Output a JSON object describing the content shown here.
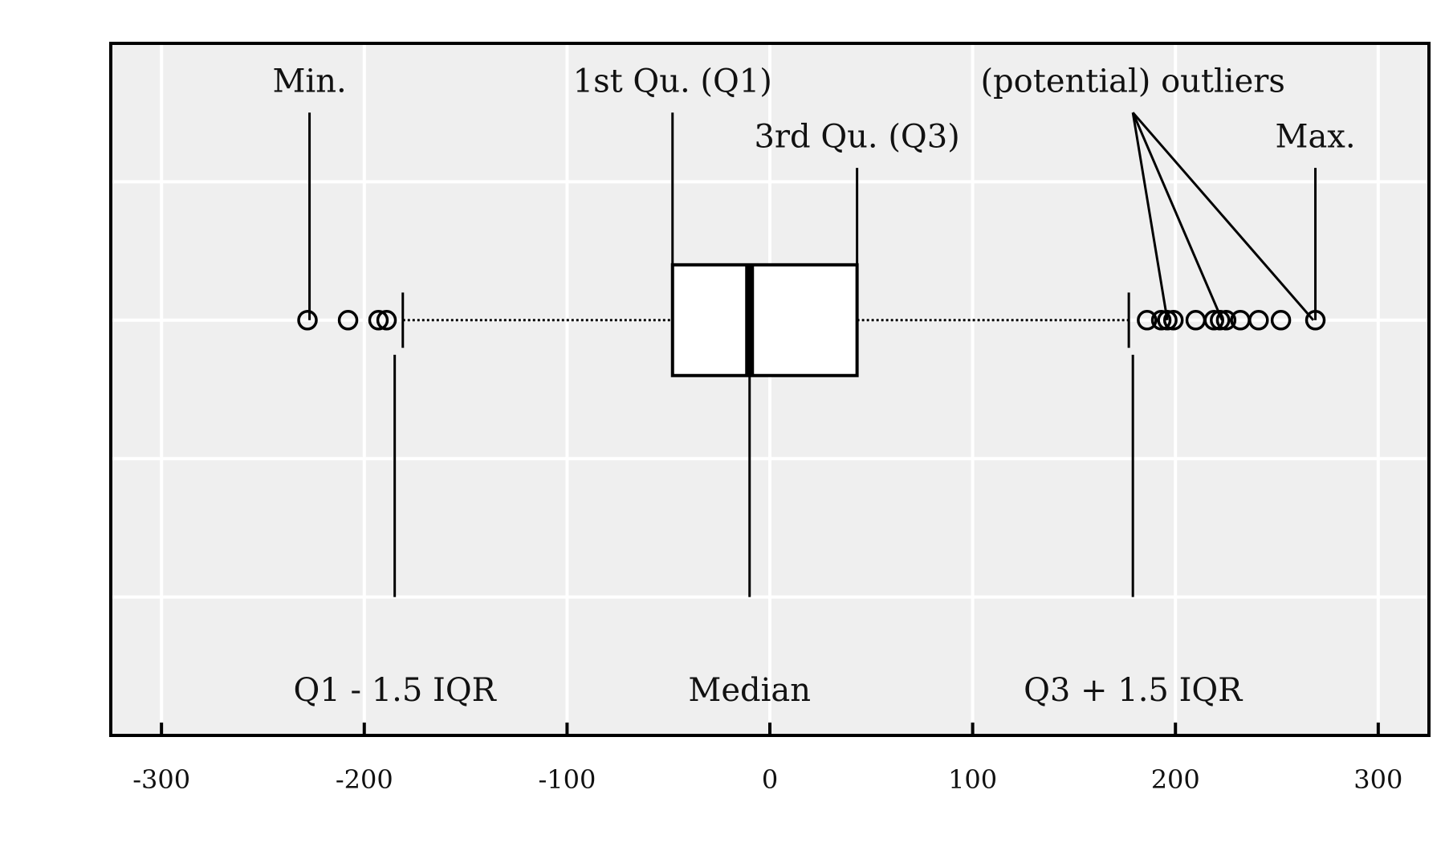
{
  "chart_data": {
    "type": "boxplot",
    "orientation": "horizontal",
    "xlim": [
      -325,
      325
    ],
    "ylim": [
      0,
      1
    ],
    "x_ticks": [
      -300,
      -200,
      -100,
      0,
      100,
      200,
      300
    ],
    "x_tick_labels": [
      "-300",
      "-200",
      "-100",
      "0",
      "100",
      "200",
      "300"
    ],
    "grid": true,
    "grid_y": [
      0.2,
      0.4,
      0.6,
      0.8
    ],
    "colors": {
      "panel": "#efefef",
      "grid": "#ffffff",
      "ink": "#000000",
      "box_fill": "#ffffff"
    },
    "box": {
      "y": 0.6,
      "half_height": 0.08,
      "q1": -48,
      "median": -10,
      "q3": 43,
      "lower_whisker": -181,
      "upper_whisker": 177,
      "outliers": [
        -228,
        -208,
        -193,
        -189,
        186,
        193,
        196,
        199,
        210,
        219,
        222,
        225,
        232,
        241,
        252,
        269
      ]
    },
    "annotations": [
      {
        "text": "Min.",
        "label_x": -227,
        "label_y": 0.93,
        "lines": [
          {
            "from": [
              -227,
              0.9
            ],
            "to": [
              -227,
              0.6
            ]
          }
        ]
      },
      {
        "text": "1st Qu. (Q1)",
        "label_x": -48,
        "label_y": 0.93,
        "lines": [
          {
            "from": [
              -48,
              0.9
            ],
            "to": [
              -48,
              0.68
            ]
          }
        ]
      },
      {
        "text": "3rd Qu. (Q3)",
        "label_x": 43,
        "label_y": 0.85,
        "lines": [
          {
            "from": [
              43,
              0.82
            ],
            "to": [
              43,
              0.68
            ]
          }
        ]
      },
      {
        "text": "(potential) outliers",
        "label_x": 179,
        "label_y": 0.93,
        "lines": [
          {
            "from": [
              179,
              0.9
            ],
            "to": [
              196,
              0.6
            ]
          },
          {
            "from": [
              179,
              0.9
            ],
            "to": [
              223,
              0.6
            ]
          },
          {
            "from": [
              179,
              0.9
            ],
            "to": [
              268,
              0.6
            ]
          }
        ]
      },
      {
        "text": "Max.",
        "label_x": 269,
        "label_y": 0.85,
        "lines": [
          {
            "from": [
              269,
              0.82
            ],
            "to": [
              269,
              0.6
            ]
          }
        ]
      },
      {
        "text": "Q1 - 1.5 IQR",
        "label_x": -185,
        "label_y": 0.05,
        "lines": [
          {
            "from": [
              -185,
              0.2
            ],
            "to": [
              -185,
              0.55
            ]
          }
        ]
      },
      {
        "text": "Median",
        "label_x": -10,
        "label_y": 0.05,
        "lines": [
          {
            "from": [
              -10,
              0.2
            ],
            "to": [
              -10,
              0.52
            ]
          }
        ]
      },
      {
        "text": "Q3 + 1.5 IQR",
        "label_x": 179,
        "label_y": 0.05,
        "lines": [
          {
            "from": [
              179,
              0.2
            ],
            "to": [
              179,
              0.55
            ]
          }
        ]
      }
    ]
  }
}
